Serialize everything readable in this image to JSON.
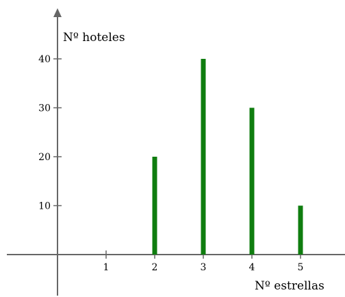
{
  "chart_data": {
    "type": "bar",
    "categories": [
      "1",
      "2",
      "3",
      "4",
      "5"
    ],
    "values": [
      0,
      20,
      40,
      30,
      10
    ],
    "xlabel": "Nº estrellas",
    "ylabel": "Nº hoteles",
    "ylim": [
      0,
      40
    ],
    "xlim": [
      0,
      5
    ],
    "yticks": [
      10,
      20,
      30,
      40
    ],
    "xticks": [
      1,
      2,
      3,
      4,
      5
    ],
    "grid": false,
    "legend": "none",
    "colors": {
      "bar": "#0f7d0f",
      "axis": "#666666",
      "text": "#000000"
    }
  }
}
